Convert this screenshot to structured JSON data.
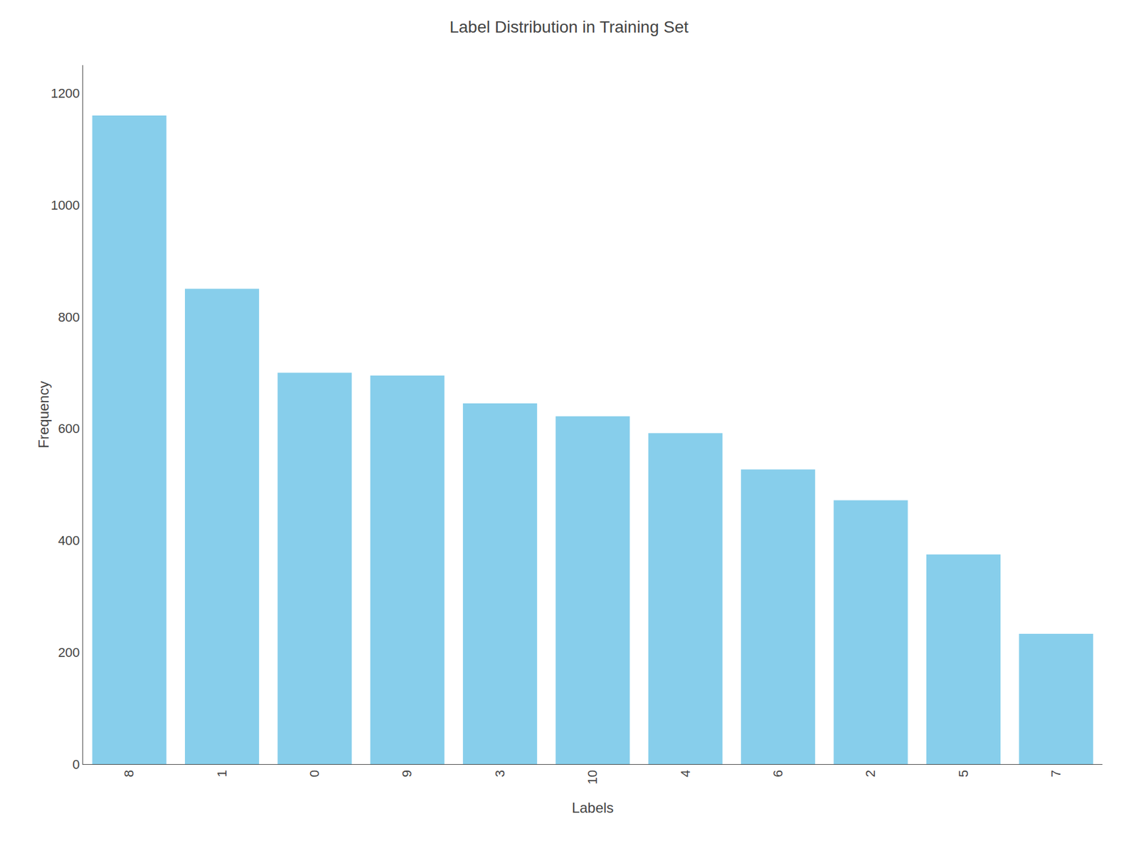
{
  "chart_data": {
    "type": "bar",
    "title": "Label Distribution in Training Set",
    "xlabel": "Labels",
    "ylabel": "Frequency",
    "categories": [
      "8",
      "1",
      "0",
      "9",
      "3",
      "10",
      "4",
      "6",
      "2",
      "5",
      "7"
    ],
    "values": [
      1160,
      850,
      700,
      695,
      645,
      622,
      592,
      527,
      472,
      375,
      233
    ],
    "color": "#87CEEB",
    "ylim": [
      0,
      1250
    ],
    "yticks": [
      0,
      200,
      400,
      600,
      800,
      1000,
      1200
    ],
    "grid": false
  }
}
